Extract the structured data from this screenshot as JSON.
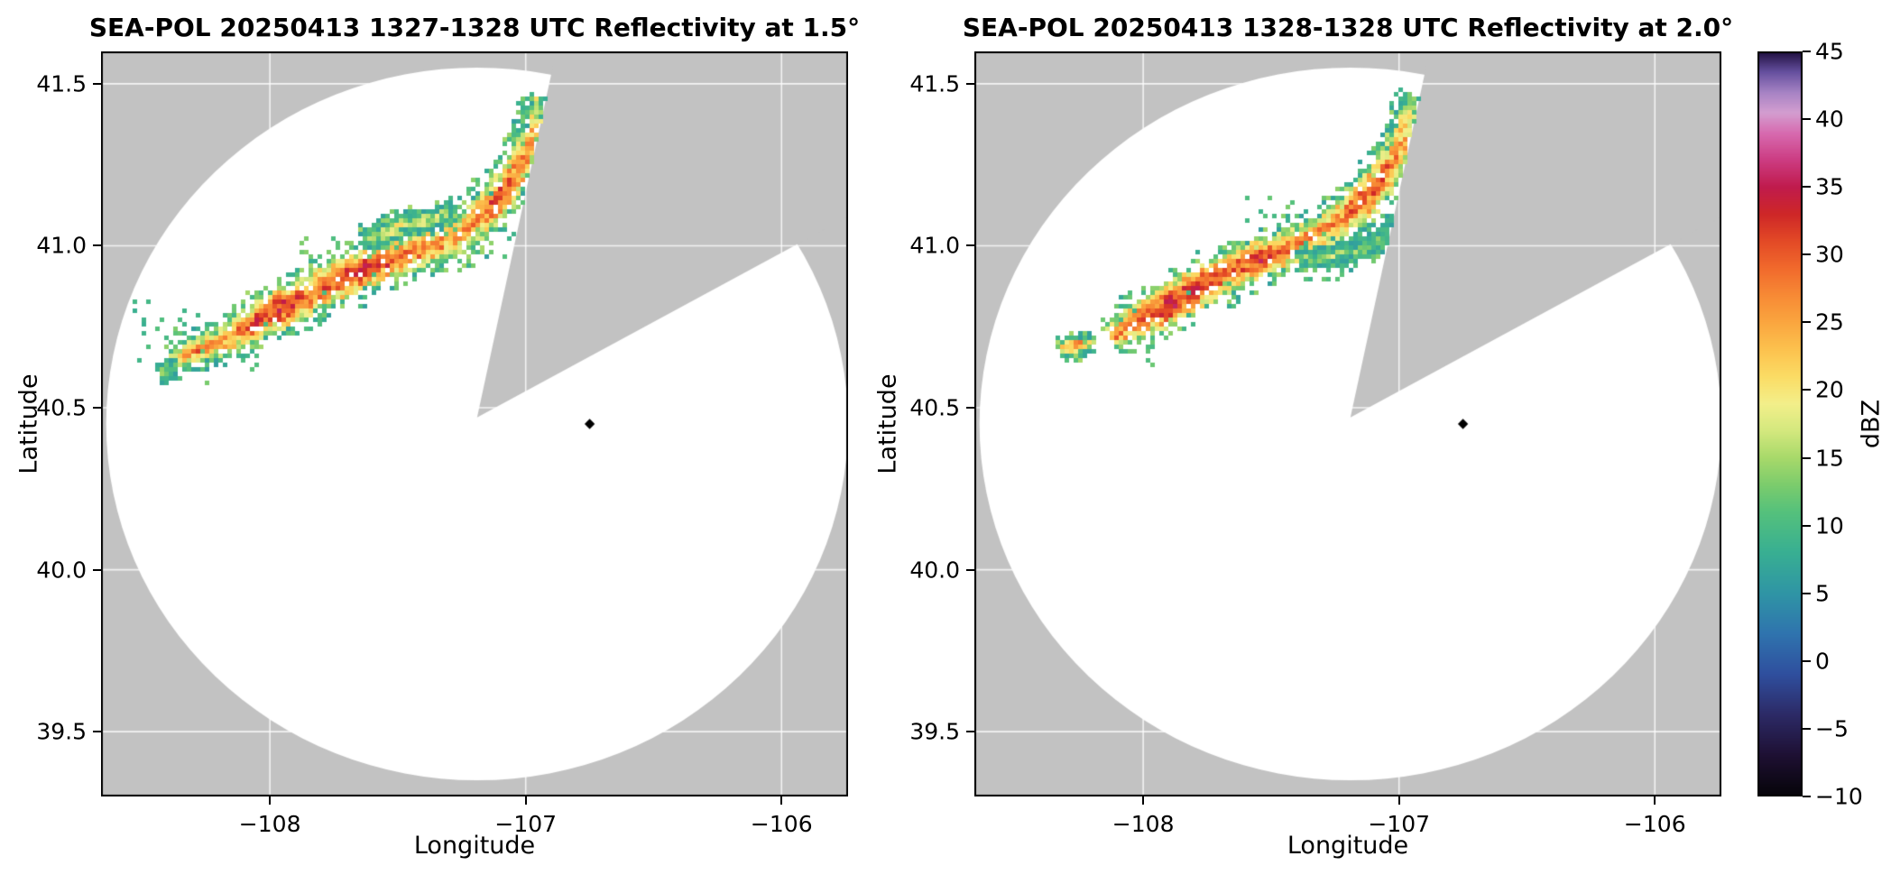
{
  "figure": {
    "background": "#ffffff"
  },
  "colors": {
    "panel_bg": "#c2c2c2",
    "scan_area": "#ffffff",
    "grid": "#ffffff",
    "frame": "#000000",
    "marker": "#000000",
    "text": "#000000"
  },
  "colormap": {
    "stops": [
      {
        "value": -10,
        "color": "#060409"
      },
      {
        "value": -7,
        "color": "#1e1033"
      },
      {
        "value": -4,
        "color": "#2c2a66"
      },
      {
        "value": -1,
        "color": "#2f4f9e"
      },
      {
        "value": 2,
        "color": "#2f74ae"
      },
      {
        "value": 5,
        "color": "#2f95a5"
      },
      {
        "value": 8,
        "color": "#38af92"
      },
      {
        "value": 11,
        "color": "#55c17c"
      },
      {
        "value": 13,
        "color": "#7ccc6c"
      },
      {
        "value": 15,
        "color": "#a8d96a"
      },
      {
        "value": 17,
        "color": "#d4e87e"
      },
      {
        "value": 19,
        "color": "#f3ef8a"
      },
      {
        "value": 21,
        "color": "#fbdc65"
      },
      {
        "value": 23,
        "color": "#fcc24e"
      },
      {
        "value": 25,
        "color": "#faa63f"
      },
      {
        "value": 27,
        "color": "#f78a35"
      },
      {
        "value": 29,
        "color": "#f16a2c"
      },
      {
        "value": 31,
        "color": "#e34a26"
      },
      {
        "value": 33,
        "color": "#ce2727"
      },
      {
        "value": 35,
        "color": "#c01b4d"
      },
      {
        "value": 37,
        "color": "#cc3c82"
      },
      {
        "value": 39,
        "color": "#d76bb0"
      },
      {
        "value": 40.5,
        "color": "#d39ed0"
      },
      {
        "value": 42,
        "color": "#a683c4"
      },
      {
        "value": 43.5,
        "color": "#66509f"
      },
      {
        "value": 45,
        "color": "#201040"
      }
    ]
  },
  "colorbar": {
    "label": "dBZ",
    "min": -10,
    "max": 45,
    "ticks": [
      {
        "value": 45,
        "label": "45"
      },
      {
        "value": 40,
        "label": "40"
      },
      {
        "value": 35,
        "label": "35"
      },
      {
        "value": 30,
        "label": "30"
      },
      {
        "value": 25,
        "label": "25"
      },
      {
        "value": 20,
        "label": "20"
      },
      {
        "value": 15,
        "label": "15"
      },
      {
        "value": 10,
        "label": "10"
      },
      {
        "value": 5,
        "label": "5"
      },
      {
        "value": 0,
        "label": "0"
      },
      {
        "value": -5,
        "label": "−5"
      },
      {
        "value": -10,
        "label": "−10"
      }
    ]
  },
  "chart_data": [
    {
      "type": "heatmap",
      "title": "SEA-POL 20250413 1327-1328 UTC Reflectivity at 1.5°",
      "radar_name": "SEA-POL",
      "date": "20250413",
      "time_utc": "1327-1328",
      "elevation_deg": 1.5,
      "xlabel": "Longitude",
      "ylabel": "Latitude",
      "xlim": [
        -108.66,
        -105.74
      ],
      "ylim": [
        39.3,
        41.6
      ],
      "xticks": [
        {
          "value": -108,
          "label": "−108"
        },
        {
          "value": -107,
          "label": "−107"
        },
        {
          "value": -106,
          "label": "−106"
        }
      ],
      "yticks": [
        {
          "value": 39.5,
          "label": "39.5"
        },
        {
          "value": 40.0,
          "label": "40.0"
        },
        {
          "value": 40.5,
          "label": "40.5"
        },
        {
          "value": 41.0,
          "label": "41.0"
        },
        {
          "value": 41.5,
          "label": "41.5"
        }
      ],
      "radar": {
        "center": [
          -107.19,
          40.45
        ],
        "radius_lon": 1.45,
        "radius_lat": 1.1
      },
      "missing_sector": {
        "apex": [
          -107.19,
          40.47
        ],
        "edge1": [
          -106.9,
          41.53
        ],
        "edge2": [
          -105.95,
          41.0
        ]
      },
      "site_marker": [
        -106.75,
        40.45
      ],
      "echoes": {
        "spines": [
          [
            [
              -108.38,
              40.65,
              0.028,
              24
            ],
            [
              -108.3,
              40.685,
              0.038,
              28
            ],
            [
              -108.2,
              40.71,
              0.042,
              25
            ],
            [
              -108.08,
              40.76,
              0.05,
              30
            ],
            [
              -107.96,
              40.815,
              0.055,
              32
            ],
            [
              -107.84,
              40.86,
              0.052,
              30
            ],
            [
              -107.72,
              40.905,
              0.055,
              31
            ],
            [
              -107.6,
              40.95,
              0.055,
              33
            ],
            [
              -107.48,
              40.98,
              0.05,
              30
            ],
            [
              -107.37,
              41.005,
              0.055,
              27
            ],
            [
              -107.27,
              41.04,
              0.055,
              25
            ],
            [
              -107.19,
              41.09,
              0.05,
              28
            ],
            [
              -107.12,
              41.15,
              0.048,
              31
            ],
            [
              -107.06,
              41.215,
              0.045,
              29
            ],
            [
              -107.02,
              41.28,
              0.04,
              26
            ],
            [
              -106.99,
              41.345,
              0.038,
              23
            ],
            [
              -106.97,
              41.41,
              0.034,
              20
            ],
            [
              -106.955,
              41.465,
              0.026,
              16
            ]
          ],
          [
            [
              -107.64,
              41.02,
              0.026,
              14
            ],
            [
              -107.52,
              41.06,
              0.03,
              19
            ],
            [
              -107.4,
              41.085,
              0.03,
              17
            ],
            [
              -107.28,
              41.115,
              0.026,
              13
            ]
          ],
          [
            [
              -108.44,
              40.615,
              0.018,
              11
            ],
            [
              -108.38,
              40.63,
              0.02,
              15
            ]
          ]
        ],
        "speckles": [
          [
            -108.48,
            40.76,
            10
          ],
          [
            -108.4,
            40.73,
            12
          ],
          [
            -108.33,
            40.77,
            9
          ],
          [
            -108.46,
            40.69,
            11
          ],
          [
            -108.52,
            40.8,
            9
          ],
          [
            -108.22,
            40.61,
            11
          ],
          [
            -108.1,
            40.655,
            10
          ],
          [
            -107.84,
            41.0,
            12
          ],
          [
            -107.73,
            41.005,
            11
          ],
          [
            -107.18,
            40.965,
            11
          ],
          [
            -107.08,
            40.99,
            9
          ],
          [
            -107.06,
            41.02,
            10
          ]
        ]
      }
    },
    {
      "type": "heatmap",
      "title": "SEA-POL 20250413 1328-1328 UTC Reflectivity at 2.0°",
      "radar_name": "SEA-POL",
      "date": "20250413",
      "time_utc": "1328-1328",
      "elevation_deg": 2.0,
      "xlabel": "Longitude",
      "ylabel": "Latitude",
      "xlim": [
        -108.66,
        -105.74
      ],
      "ylim": [
        39.3,
        41.6
      ],
      "xticks": [
        {
          "value": -108,
          "label": "−108"
        },
        {
          "value": -107,
          "label": "−107"
        },
        {
          "value": -106,
          "label": "−106"
        }
      ],
      "yticks": [
        {
          "value": 39.5,
          "label": "39.5"
        },
        {
          "value": 40.0,
          "label": "40.0"
        },
        {
          "value": 40.5,
          "label": "40.5"
        },
        {
          "value": 41.0,
          "label": "41.0"
        },
        {
          "value": 41.5,
          "label": "41.5"
        }
      ],
      "radar": {
        "center": [
          -107.19,
          40.45
        ],
        "radius_lon": 1.45,
        "radius_lat": 1.1
      },
      "missing_sector": {
        "apex": [
          -107.19,
          40.47
        ],
        "edge1": [
          -106.9,
          41.53
        ],
        "edge2": [
          -105.95,
          41.0
        ]
      },
      "site_marker": [
        -106.75,
        40.45
      ],
      "echoes": {
        "spines": [
          [
            [
              -108.13,
              40.725,
              0.04,
              26
            ],
            [
              -108.03,
              40.77,
              0.05,
              30
            ],
            [
              -107.91,
              40.825,
              0.055,
              33
            ],
            [
              -107.79,
              40.88,
              0.055,
              32
            ],
            [
              -107.67,
              40.925,
              0.055,
              30
            ],
            [
              -107.55,
              40.97,
              0.05,
              32
            ],
            [
              -107.44,
              41.0,
              0.05,
              29
            ],
            [
              -107.34,
              41.035,
              0.05,
              26
            ],
            [
              -107.24,
              41.085,
              0.05,
              27
            ],
            [
              -107.15,
              41.145,
              0.048,
              30
            ],
            [
              -107.08,
              41.21,
              0.045,
              31
            ],
            [
              -107.03,
              41.275,
              0.04,
              27
            ],
            [
              -106.995,
              41.34,
              0.038,
              24
            ],
            [
              -106.97,
              41.41,
              0.034,
              21
            ],
            [
              -106.955,
              41.47,
              0.026,
              16
            ]
          ],
          [
            [
              -107.4,
              40.97,
              0.024,
              13
            ],
            [
              -107.28,
              40.975,
              0.027,
              16
            ],
            [
              -107.16,
              40.995,
              0.027,
              15
            ],
            [
              -107.06,
              41.035,
              0.024,
              13
            ],
            [
              -107.015,
              41.095,
              0.02,
              12
            ]
          ],
          [
            [
              -108.33,
              40.685,
              0.024,
              22
            ],
            [
              -108.27,
              40.7,
              0.028,
              27
            ],
            [
              -108.21,
              40.705,
              0.02,
              19
            ]
          ]
        ],
        "speckles": [
          [
            -106.8,
            41.03,
            10
          ],
          [
            -106.85,
            41.065,
            9
          ],
          [
            -106.77,
            41.0,
            8
          ],
          [
            -108.03,
            40.675,
            11
          ],
          [
            -107.93,
            40.71,
            10
          ],
          [
            -107.25,
            40.93,
            11
          ],
          [
            -107.35,
            40.92,
            10
          ],
          [
            -106.99,
            41.19,
            11
          ],
          [
            -107.45,
            41.1,
            12
          ],
          [
            -107.55,
            41.12,
            10
          ]
        ]
      }
    }
  ]
}
